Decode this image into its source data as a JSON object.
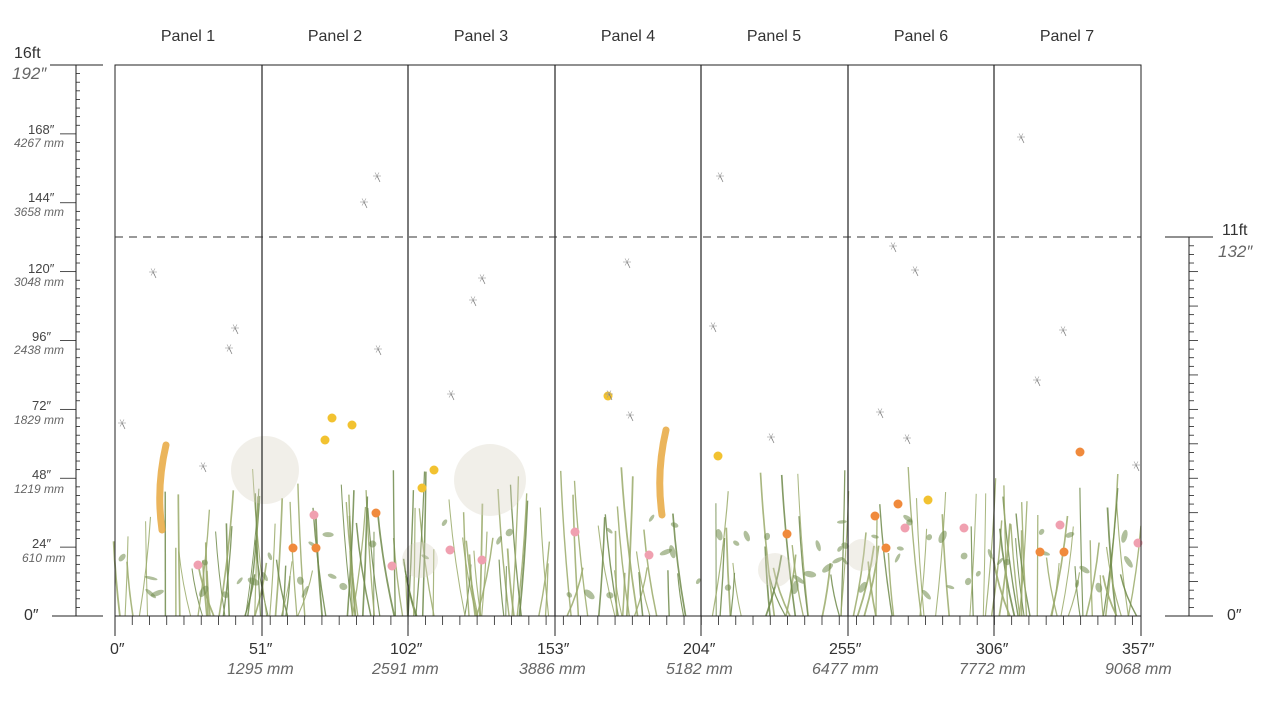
{
  "panels": [
    "Panel 1",
    "Panel 2",
    "Panel 3",
    "Panel 4",
    "Panel 5",
    "Panel 6",
    "Panel 7"
  ],
  "left_scale": {
    "top_ft": "16ft",
    "top_in": "192″",
    "marks": [
      {
        "inch": "168″",
        "mm": "4267 mm"
      },
      {
        "inch": "144″",
        "mm": "3658 mm"
      },
      {
        "inch": "120″",
        "mm": "3048 mm"
      },
      {
        "inch": "96″",
        "mm": "2438 mm"
      },
      {
        "inch": "72″",
        "mm": "1829 mm"
      },
      {
        "inch": "48″",
        "mm": "1219 mm"
      },
      {
        "inch": "24″",
        "mm": "610 mm"
      }
    ],
    "zero": "0″"
  },
  "right_scale": {
    "top_ft": "11ft",
    "top_in": "132″",
    "zero": "0″"
  },
  "bottom_scale": {
    "start": "0″",
    "marks": [
      {
        "inch": "51″",
        "mm": "1295 mm"
      },
      {
        "inch": "102″",
        "mm": "2591 mm"
      },
      {
        "inch": "153″",
        "mm": "3886 mm"
      },
      {
        "inch": "204″",
        "mm": "5182 mm"
      },
      {
        "inch": "255″",
        "mm": "6477 mm"
      },
      {
        "inch": "306″",
        "mm": "7772 mm"
      },
      {
        "inch": "357″",
        "mm": "9068 mm"
      }
    ]
  },
  "colors": {
    "line": "#222222",
    "stem": "#9aaa6a",
    "leaf": "#6f8a4a",
    "yellow": "#f2c230",
    "orange": "#f08a3c",
    "pink": "#f0a0b0",
    "seedhead": "#d8d2c0"
  }
}
